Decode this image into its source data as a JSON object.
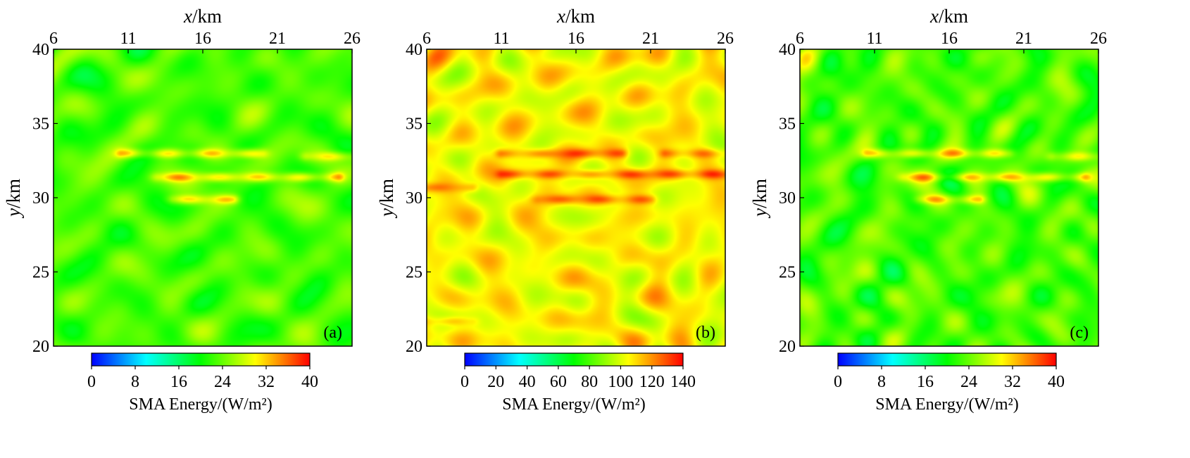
{
  "chart_data": [
    {
      "type": "heatmap",
      "panel_label": "(a)",
      "xlabel": {
        "italic": "x",
        "rest": "/km"
      },
      "ylabel": {
        "italic": "y",
        "rest": "/km"
      },
      "xlim": [
        6,
        26
      ],
      "ylim": [
        20,
        40
      ],
      "x_ticks": [
        6,
        11,
        16,
        21,
        26
      ],
      "y_ticks": [
        20,
        25,
        30,
        35,
        40
      ],
      "colorbar": {
        "min": 0,
        "max": 40,
        "ticks": [
          "0",
          "8",
          "16",
          "24",
          "32",
          "40"
        ],
        "label": "SMA Energy/(W/m²)"
      },
      "background_level": 0.57,
      "features": [
        {
          "x": [
            10.5,
            20.0
          ],
          "y": 33.0,
          "level": 0.78
        },
        {
          "x": [
            13.0,
            25.0
          ],
          "y": 31.4,
          "level": 0.8
        },
        {
          "x": [
            14.0,
            18.0
          ],
          "y": 29.9,
          "level": 0.78
        },
        {
          "x": [
            23.0,
            26.0
          ],
          "y": 32.8,
          "level": 0.74
        }
      ]
    },
    {
      "type": "heatmap",
      "panel_label": "(b)",
      "xlabel": {
        "italic": "x",
        "rest": "/km"
      },
      "ylabel": {
        "italic": "y",
        "rest": "/km"
      },
      "xlim": [
        6,
        26
      ],
      "ylim": [
        20,
        40
      ],
      "x_ticks": [
        6,
        11,
        16,
        21,
        26
      ],
      "y_ticks": [
        20,
        25,
        30,
        35,
        40
      ],
      "colorbar": {
        "min": 0,
        "max": 140,
        "ticks": [
          "0",
          "20",
          "40",
          "60",
          "80",
          "100",
          "120",
          "140"
        ],
        "label": "SMA Energy/(W/m²)"
      },
      "background_level": 0.75,
      "features": [
        {
          "x": [
            11.0,
            19.0
          ],
          "y": 33.0,
          "level": 0.9
        },
        {
          "x": [
            11.0,
            26.0
          ],
          "y": 31.6,
          "level": 0.92
        },
        {
          "x": [
            13.5,
            21.0
          ],
          "y": 29.9,
          "level": 0.9
        },
        {
          "x": [
            22.0,
            26.0
          ],
          "y": 33.0,
          "level": 0.88
        },
        {
          "x": [
            6.0,
            9.0
          ],
          "y": 21.7,
          "level": 0.86
        },
        {
          "x": [
            6.0,
            9.0
          ],
          "y": 30.7,
          "level": 0.86
        }
      ]
    },
    {
      "type": "heatmap",
      "panel_label": "(c)",
      "xlabel": {
        "italic": "x",
        "rest": "/km"
      },
      "ylabel": {
        "italic": "y",
        "rest": "/km"
      },
      "xlim": [
        6,
        26
      ],
      "ylim": [
        20,
        40
      ],
      "x_ticks": [
        6,
        11,
        16,
        21,
        26
      ],
      "y_ticks": [
        20,
        25,
        30,
        35,
        40
      ],
      "colorbar": {
        "min": 0,
        "max": 40,
        "ticks": [
          "0",
          "8",
          "16",
          "24",
          "32",
          "40"
        ],
        "label": "SMA Energy/(W/m²)"
      },
      "background_level": 0.57,
      "features": [
        {
          "x": [
            10.5,
            20.0
          ],
          "y": 33.0,
          "level": 0.78
        },
        {
          "x": [
            13.0,
            25.0
          ],
          "y": 31.4,
          "level": 0.79
        },
        {
          "x": [
            14.0,
            18.0
          ],
          "y": 29.9,
          "level": 0.77
        },
        {
          "x": [
            23.0,
            26.0
          ],
          "y": 32.8,
          "level": 0.74
        }
      ]
    }
  ],
  "colormap": [
    "#0000ff",
    "#00ffff",
    "#00ff00",
    "#ffff00",
    "#ff0000"
  ]
}
